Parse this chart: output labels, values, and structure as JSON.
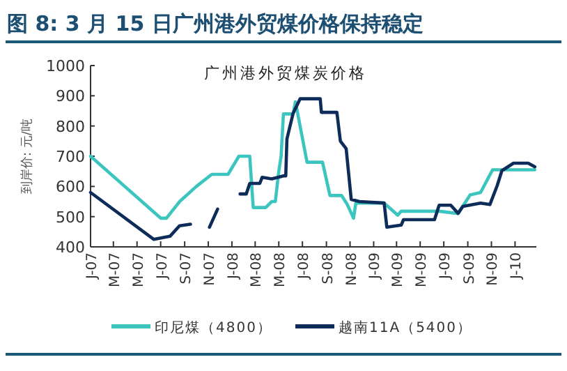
{
  "chart_data": {
    "type": "line",
    "title": "图 8: 3 月 15 日广州港外贸煤价格保持稳定",
    "subtitle": "广州港外贸煤炭价格",
    "ylabel": "到岸价: 元/吨",
    "xlim": [
      "2007-01-01",
      "2010-02-25"
    ],
    "ylim": [
      400,
      1000
    ],
    "yticks": [
      400,
      500,
      600,
      700,
      800,
      900,
      1000
    ],
    "xticks": [
      {
        "value": "2007-01-01",
        "label": "J-07"
      },
      {
        "value": "2007-03-01",
        "label": "M-07"
      },
      {
        "value": "2007-05-01",
        "label": "M-07"
      },
      {
        "value": "2007-07-01",
        "label": "J-07"
      },
      {
        "value": "2007-09-01",
        "label": "S-07"
      },
      {
        "value": "2007-11-01",
        "label": "N-07"
      },
      {
        "value": "2008-01-01",
        "label": "J-08"
      },
      {
        "value": "2008-03-01",
        "label": "M-08"
      },
      {
        "value": "2008-05-01",
        "label": "M-08"
      },
      {
        "value": "2008-07-01",
        "label": "J-08"
      },
      {
        "value": "2008-09-01",
        "label": "S-08"
      },
      {
        "value": "2008-11-01",
        "label": "N-08"
      },
      {
        "value": "2009-01-01",
        "label": "J-09"
      },
      {
        "value": "2009-03-01",
        "label": "M-09"
      },
      {
        "value": "2009-05-01",
        "label": "M-09"
      },
      {
        "value": "2009-07-01",
        "label": "J-09"
      },
      {
        "value": "2009-09-01",
        "label": "S-09"
      },
      {
        "value": "2009-11-01",
        "label": "N-09"
      },
      {
        "value": "2010-01-01",
        "label": "J-10"
      }
    ],
    "grid": false,
    "legend": "bottom",
    "marker": "none",
    "line_style": "solid",
    "series": [
      {
        "name": "印尼煤（4800）",
        "color": "#3cc4bf",
        "x": [
          "2007-01-01",
          "2007-07-01",
          "2007-07-16",
          "2007-08-19",
          "2007-10-01",
          "2007-11-10",
          "2007-12-22",
          "2008-01-19",
          "2008-02-16",
          "2008-02-25",
          "2008-03-28",
          "2008-04-13",
          "2008-04-22",
          "2008-05-01",
          "2008-05-07",
          "2008-05-13",
          "2008-06-07",
          "2008-06-13",
          "2008-07-13",
          "2008-08-22",
          "2008-09-10",
          "2008-10-10",
          "2008-10-25",
          "2008-11-10",
          "2008-11-16",
          "2009-01-28",
          "2009-03-04",
          "2009-03-13",
          "2009-06-19",
          "2009-08-07",
          "2009-09-07",
          "2009-10-04",
          "2009-11-04",
          "2010-02-21"
        ],
        "values": [
          700,
          495,
          495,
          550,
          600,
          640,
          640,
          700,
          700,
          530,
          530,
          550,
          550,
          650,
          700,
          840,
          840,
          880,
          680,
          680,
          570,
          570,
          540,
          495,
          545,
          545,
          505,
          518,
          518,
          510,
          572,
          580,
          655,
          655
        ]
      },
      {
        "name": "越南11A（5400）",
        "color": "#0e2c5a",
        "x": [
          "2007-01-01",
          "2007-06-13",
          "2007-07-25",
          "2007-08-19",
          "2007-09-16",
          "2007-10-01",
          "2007-11-04",
          "2007-11-25",
          "2007-12-15",
          "2008-01-22",
          "2008-02-07",
          "2008-02-16",
          "2008-03-13",
          "2008-03-19",
          "2008-04-13",
          "2008-05-13",
          "2008-05-19",
          "2008-05-22",
          "2008-06-07",
          "2008-06-25",
          "2008-08-16",
          "2008-08-19",
          "2008-09-28",
          "2008-10-07",
          "2008-10-22",
          "2008-11-04",
          "2008-11-25",
          "2009-01-28",
          "2009-02-04",
          "2009-03-13",
          "2009-03-19",
          "2009-06-07",
          "2009-06-19",
          "2009-07-19",
          "2009-08-07",
          "2009-08-19",
          "2009-10-04",
          "2009-10-28",
          "2009-11-16",
          "2009-11-28",
          "2009-12-28",
          "2010-02-04",
          "2010-02-21"
        ],
        "values": [
          580,
          425,
          435,
          470,
          475,
          null,
          465,
          525,
          null,
          575,
          575,
          610,
          610,
          630,
          625,
          635,
          635,
          757,
          842,
          890,
          890,
          845,
          845,
          750,
          725,
          557,
          550,
          545,
          465,
          472,
          490,
          490,
          538,
          538,
          511,
          534,
          545,
          540,
          603,
          652,
          677,
          677,
          665
        ]
      }
    ]
  }
}
